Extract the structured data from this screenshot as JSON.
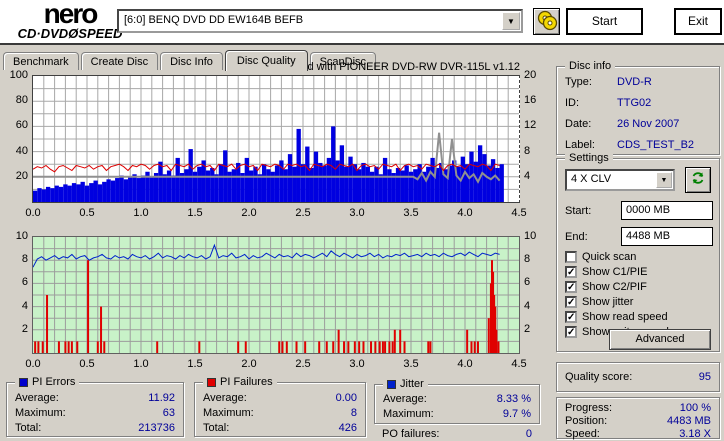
{
  "header": {
    "logo_line1": "nero",
    "logo_line2": "CD·DVDØSPEED",
    "drive_selector": "[6:0]   BENQ DVD DD EW164B BEFB",
    "start_label": "Start",
    "exit_label": "Exit"
  },
  "tabs": [
    "Benchmark",
    "Create Disc",
    "Disc Info",
    "Disc Quality",
    "ScanDisc"
  ],
  "active_tab": 3,
  "chart_data": [
    {
      "type": "bar",
      "title": "recorded with PIONEER DVD-RW  DVR-115L v1.12",
      "xlabel": "GB",
      "x_step": 0.04,
      "xlim": [
        0,
        4.5
      ],
      "ylim_left": [
        0,
        100
      ],
      "ylim_right": [
        0,
        20
      ],
      "x_ticks": [
        "0.0",
        "0.5",
        "1.0",
        "1.5",
        "2.0",
        "2.5",
        "3.0",
        "3.5",
        "4.0",
        "4.5"
      ],
      "y_ticks_left": [
        "100",
        "80",
        "60",
        "40",
        "20"
      ],
      "y_ticks_right": [
        "20",
        "16",
        "12",
        "8",
        "4"
      ],
      "grid_color": "#a8a8a8",
      "bg": "#ffffff",
      "series": [
        {
          "name": "PI Errors",
          "type": "bar",
          "color": "#0000e0",
          "values": [
            9,
            11,
            10,
            12,
            11,
            13,
            12,
            14,
            13,
            15,
            14,
            16,
            13,
            15,
            17,
            14,
            16,
            18,
            17,
            19,
            21,
            18,
            20,
            22,
            19,
            21,
            24,
            20,
            23,
            32,
            22,
            25,
            21,
            35,
            23,
            26,
            42,
            24,
            28,
            33,
            25,
            27,
            22,
            30,
            41,
            24,
            26,
            31,
            23,
            35,
            25,
            28,
            22,
            30,
            26,
            24,
            29,
            33,
            26,
            38,
            28,
            58,
            30,
            44,
            27,
            40,
            31,
            29,
            35,
            60,
            33,
            45,
            28,
            36,
            30,
            26,
            31,
            28,
            24,
            28,
            22,
            35,
            26,
            23,
            27,
            25,
            29,
            24,
            26,
            30,
            24,
            28,
            35,
            27,
            31,
            26,
            29,
            33,
            28,
            36,
            30,
            40,
            32,
            45,
            38,
            29,
            34,
            27,
            30
          ]
        },
        {
          "name": "Write speed",
          "type": "line",
          "color": "#909090",
          "width": 2,
          "values": [
            20,
            20,
            20,
            20,
            20,
            20,
            20,
            20,
            20,
            20,
            20,
            20,
            20,
            20,
            20,
            20,
            20,
            20,
            20,
            20,
            20,
            20,
            20,
            20,
            20,
            20,
            20,
            20,
            20,
            20,
            20,
            20,
            20,
            20,
            20,
            20,
            20,
            20,
            20,
            20,
            20,
            20,
            20,
            20,
            20,
            20,
            20,
            20,
            20,
            20,
            20,
            20,
            20,
            20,
            20,
            20,
            20,
            20,
            20,
            20,
            20,
            20,
            20,
            20,
            20,
            20,
            20,
            20,
            20,
            20,
            20,
            20,
            20,
            20,
            20,
            20,
            20,
            20,
            20,
            20,
            20,
            20,
            20,
            20,
            20,
            20,
            20,
            20,
            20,
            18,
            23,
            17,
            24,
            20,
            55,
            22,
            19,
            50,
            21,
            17,
            24,
            19,
            22,
            16,
            23,
            20,
            18,
            21,
            17
          ]
        },
        {
          "name": "Read speed",
          "type": "line",
          "color": "#dd0000",
          "width": 1,
          "values": [
            26,
            28,
            27,
            29,
            26,
            24,
            28,
            29,
            27,
            25,
            29,
            28,
            27,
            29,
            26,
            28,
            29,
            25,
            28,
            29,
            30,
            28,
            25,
            29,
            28,
            30,
            29,
            26,
            29,
            30,
            28,
            29,
            25,
            30,
            29,
            28,
            30,
            26,
            29,
            30,
            28,
            29,
            25,
            30,
            29,
            28,
            30,
            26,
            29,
            30,
            28,
            29,
            25,
            30,
            29,
            28,
            30,
            29,
            26,
            30,
            29,
            30,
            28,
            29,
            25,
            30,
            29,
            28,
            30,
            29,
            26,
            30,
            29,
            28,
            30,
            25,
            29,
            30,
            28,
            29,
            26,
            30,
            29,
            28,
            30,
            25,
            29,
            30,
            28,
            29,
            26,
            30,
            29,
            28,
            30,
            25,
            29,
            30,
            28,
            29,
            26,
            30,
            29,
            28,
            30,
            29,
            25,
            30,
            29
          ]
        }
      ]
    },
    {
      "type": "line",
      "xlabel": "GB",
      "x_step": 0.04,
      "xlim": [
        0,
        4.5
      ],
      "ylim": [
        0,
        10
      ],
      "x_ticks": [
        "0.0",
        "0.5",
        "1.0",
        "1.5",
        "2.0",
        "2.5",
        "3.0",
        "3.5",
        "4.0",
        "4.5"
      ],
      "y_ticks_left": [
        "10",
        "8",
        "6",
        "4",
        "2"
      ],
      "y_ticks_right": [
        "10",
        "8",
        "6",
        "4",
        "2"
      ],
      "grid_color": "#9c9c9c",
      "bg": "#c8f2c8",
      "series": [
        {
          "name": "Jitter",
          "type": "line",
          "color": "#0022cc",
          "width": 1,
          "values": [
            7.4,
            8.1,
            8.3,
            8.0,
            8.2,
            8.4,
            8.1,
            8.3,
            8.2,
            8.5,
            8.1,
            8.3,
            8.4,
            8.0,
            8.2,
            8.3,
            8.5,
            8.2,
            8.1,
            8.4,
            8.2,
            8.3,
            8.1,
            8.5,
            8.3,
            8.2,
            8.4,
            8.1,
            8.3,
            8.6,
            8.2,
            8.4,
            8.3,
            8.1,
            8.4,
            8.2,
            8.5,
            8.3,
            8.2,
            8.4,
            8.1,
            8.3,
            9.3,
            8.2,
            8.4,
            8.3,
            8.6,
            8.2,
            8.3,
            8.5,
            8.1,
            8.4,
            8.2,
            8.3,
            8.6,
            8.4,
            8.2,
            8.5,
            8.3,
            8.4,
            8.2,
            8.6,
            8.3,
            8.5,
            8.4,
            8.2,
            8.4,
            8.6,
            8.3,
            8.8,
            8.5,
            8.3,
            8.6,
            8.4,
            8.2,
            8.5,
            8.3,
            8.4,
            8.6,
            8.3,
            8.5,
            8.2,
            8.4,
            8.3,
            8.5,
            8.4,
            8.6,
            8.3,
            8.4,
            8.5,
            8.3,
            8.6,
            8.4,
            8.5,
            8.3,
            8.6,
            8.4,
            8.3,
            8.5,
            8.6,
            8.4,
            8.7,
            8.5,
            8.3,
            8.6,
            8.5,
            8.4,
            8.6,
            8.5
          ]
        }
      ],
      "spikes": {
        "name": "PI Failures",
        "color": "#e00000",
        "points": [
          [
            0.02,
            1
          ],
          [
            0.05,
            1
          ],
          [
            0.09,
            1
          ],
          [
            0.13,
            5
          ],
          [
            0.24,
            1
          ],
          [
            0.3,
            1
          ],
          [
            0.33,
            1
          ],
          [
            0.36,
            1
          ],
          [
            0.41,
            1
          ],
          [
            0.51,
            8
          ],
          [
            0.6,
            1
          ],
          [
            0.63,
            4
          ],
          [
            0.66,
            1
          ],
          [
            1.15,
            1
          ],
          [
            1.54,
            1
          ],
          [
            1.9,
            1
          ],
          [
            1.97,
            1
          ],
          [
            2.28,
            1
          ],
          [
            2.31,
            1
          ],
          [
            2.35,
            1
          ],
          [
            2.44,
            1
          ],
          [
            2.52,
            1
          ],
          [
            2.65,
            1
          ],
          [
            2.72,
            1
          ],
          [
            2.78,
            1
          ],
          [
            2.83,
            2
          ],
          [
            2.88,
            1
          ],
          [
            2.92,
            1
          ],
          [
            2.98,
            1
          ],
          [
            3.02,
            1
          ],
          [
            3.06,
            1
          ],
          [
            3.13,
            1
          ],
          [
            3.17,
            1
          ],
          [
            3.21,
            1
          ],
          [
            3.24,
            1
          ],
          [
            3.26,
            1
          ],
          [
            3.3,
            1
          ],
          [
            3.33,
            1
          ],
          [
            3.35,
            2
          ],
          [
            3.4,
            2
          ],
          [
            3.44,
            1
          ],
          [
            3.66,
            1
          ],
          [
            3.68,
            1
          ],
          [
            4.02,
            2
          ],
          [
            4.06,
            1
          ],
          [
            4.09,
            1
          ],
          [
            4.12,
            1
          ],
          [
            4.22,
            3
          ],
          [
            4.24,
            6
          ],
          [
            4.25,
            8
          ],
          [
            4.26,
            7
          ],
          [
            4.27,
            5
          ],
          [
            4.28,
            4
          ],
          [
            4.29,
            2
          ],
          [
            4.31,
            1
          ]
        ]
      }
    }
  ],
  "disc_info": {
    "legend": "Disc info",
    "rows": [
      {
        "label": "Type:",
        "value": "DVD-R"
      },
      {
        "label": "ID:",
        "value": "TTG02"
      },
      {
        "label": "Date:",
        "value": "26 Nov 2007"
      },
      {
        "label": "Label:",
        "value": "CDS_TEST_B2"
      }
    ]
  },
  "settings": {
    "legend": "Settings",
    "speed_selected": "4 X CLV",
    "start_label": "Start:",
    "start_value": "0000 MB",
    "end_label": "End:",
    "end_value": "4488 MB",
    "checkboxes": [
      {
        "label": "Quick scan",
        "checked": false
      },
      {
        "label": "Show C1/PIE",
        "checked": true
      },
      {
        "label": "Show C2/PIF",
        "checked": true
      },
      {
        "label": "Show jitter",
        "checked": true
      },
      {
        "label": "Show read speed",
        "checked": true
      },
      {
        "label": "Show write speed",
        "checked": true
      }
    ],
    "advanced_label": "Advanced"
  },
  "quality": {
    "label": "Quality score:",
    "value": "95"
  },
  "stats": {
    "pi_errors": {
      "legend": "PI Errors",
      "color": "#0000cc",
      "rows": [
        {
          "label": "Average:",
          "value": "11.92"
        },
        {
          "label": "Maximum:",
          "value": "63"
        },
        {
          "label": "Total:",
          "value": "213736"
        }
      ]
    },
    "pi_failures": {
      "legend": "PI Failures",
      "color": "#e00000",
      "rows": [
        {
          "label": "Average:",
          "value": "0.00"
        },
        {
          "label": "Maximum:",
          "value": "8"
        },
        {
          "label": "Total:",
          "value": "426"
        }
      ]
    },
    "jitter": {
      "legend": "Jitter",
      "color": "#0022cc",
      "rows": [
        {
          "label": "Average:",
          "value": "8.33 %"
        },
        {
          "label": "Maximum:",
          "value": "9.7 %"
        }
      ]
    },
    "po_failures": {
      "label": "PO failures:",
      "value": "0"
    }
  },
  "progress": {
    "rows": [
      {
        "label": "Progress:",
        "value": "100 %"
      },
      {
        "label": "Position:",
        "value": "4483 MB"
      },
      {
        "label": "Speed:",
        "value": "3.18 X"
      }
    ]
  }
}
